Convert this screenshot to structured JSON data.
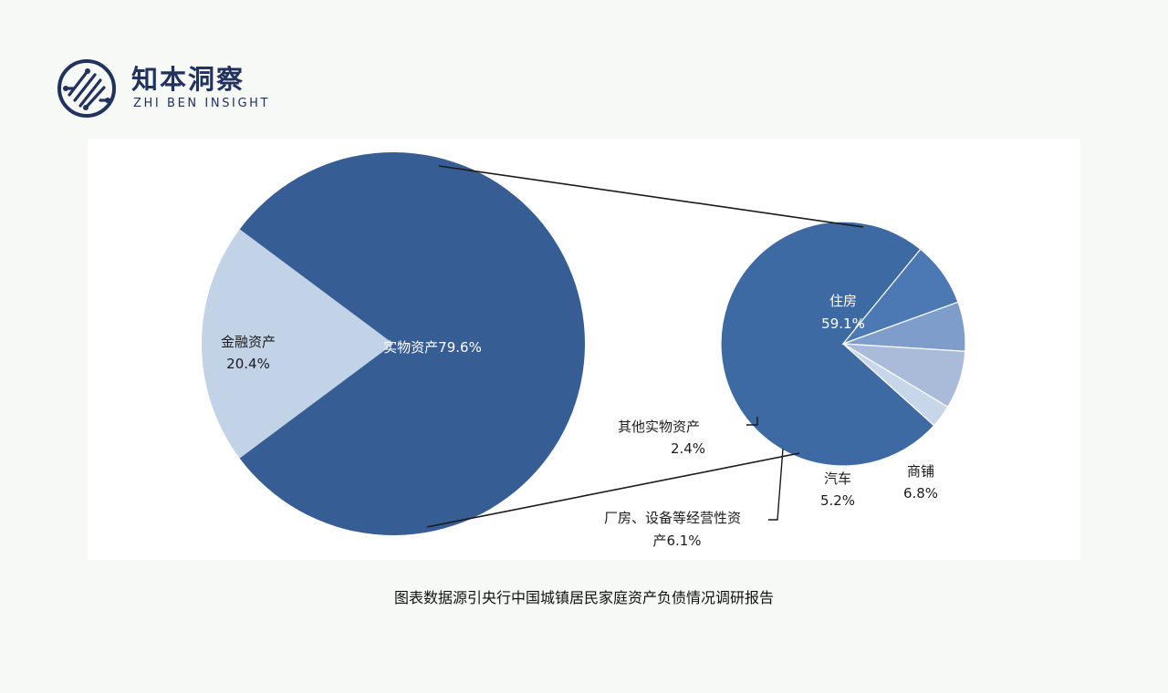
{
  "brand": {
    "name_cn": "知本洞察",
    "name_en": "ZHI BEN INSIGHT",
    "logo_icon": "circuit-circle-icon",
    "color": "#21325e"
  },
  "chart_data": [
    {
      "type": "pie",
      "slices": [
        {
          "label": "实物资产",
          "value": 79.6,
          "value_label": "79.6%",
          "color": "#365d94"
        },
        {
          "label": "金融资产",
          "value": 20.4,
          "value_label": "20.4%",
          "color": "#c2d2e7"
        }
      ]
    },
    {
      "type": "pie",
      "breakdown_of": "实物资产",
      "slices": [
        {
          "label": "住房",
          "value": 59.1,
          "value_label": "59.1%",
          "color": "#3d6aa3"
        },
        {
          "label": "商铺",
          "value": 6.8,
          "value_label": "6.8%",
          "color": "#4c78b4"
        },
        {
          "label": "汽车",
          "value": 5.2,
          "value_label": "5.2%",
          "color": "#7e9dcb"
        },
        {
          "label": "厂房、设备等经营性资产",
          "value": 6.1,
          "value_label": "6.1%",
          "color": "#a9bbd9"
        },
        {
          "label": "其他实物资产",
          "value": 2.4,
          "value_label": "2.4%",
          "color": "#c8d6ea"
        }
      ]
    }
  ],
  "caption": "图表数据源引央行中国城镇居民家庭资产负债情况调研报告"
}
